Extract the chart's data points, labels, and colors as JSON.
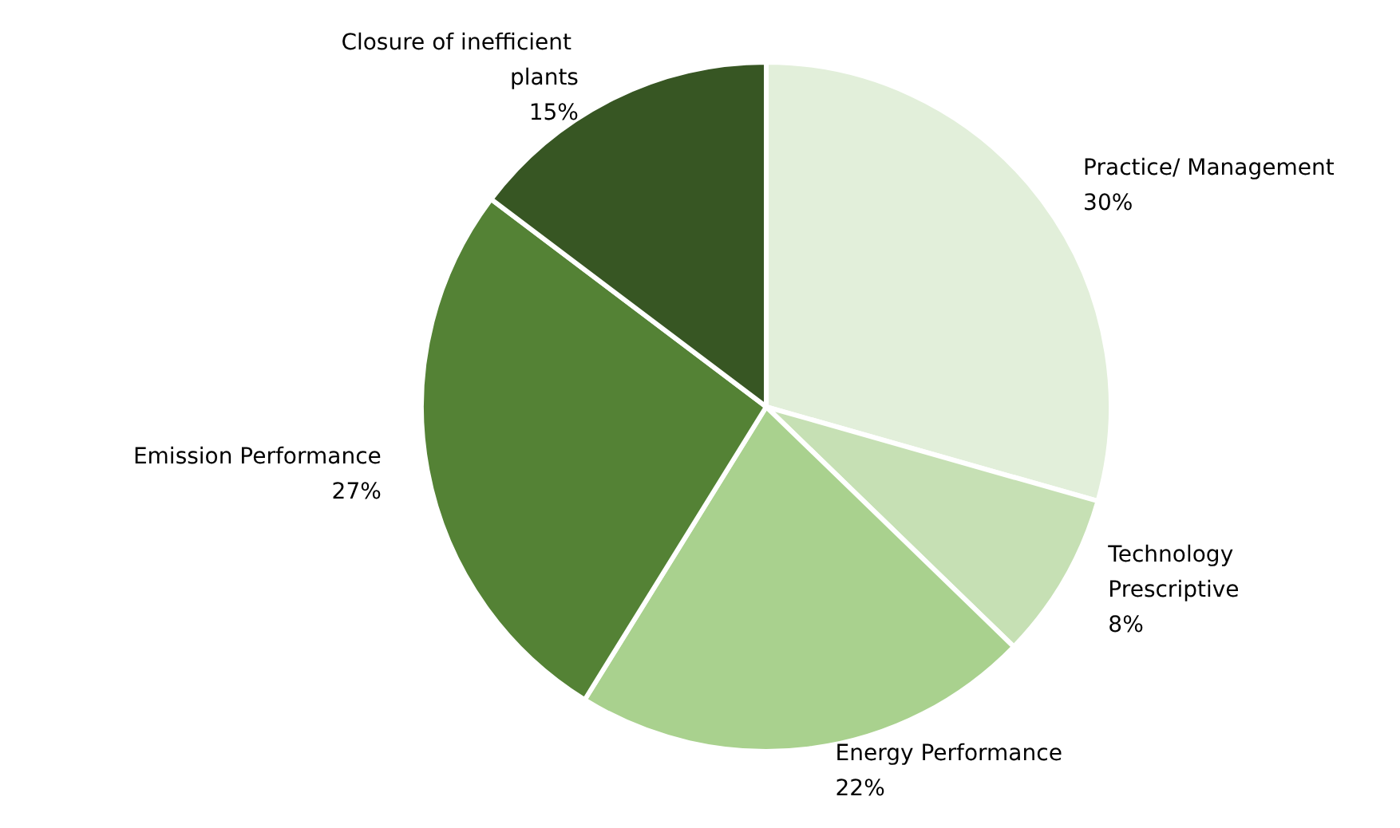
{
  "chart_data": {
    "type": "pie",
    "categories": [
      "Practice/ Management",
      "Technology Prescriptive",
      "Energy Performance",
      "Emission Performance",
      "Closure of inefficient plants"
    ],
    "values": [
      30,
      8,
      22,
      27,
      15
    ],
    "colors": [
      "#e2efda",
      "#c6e0b4",
      "#a9d18e",
      "#548235",
      "#375623"
    ],
    "value_labels": [
      "30%",
      "8%",
      "22%",
      "27%",
      "15%"
    ],
    "legend": false
  }
}
